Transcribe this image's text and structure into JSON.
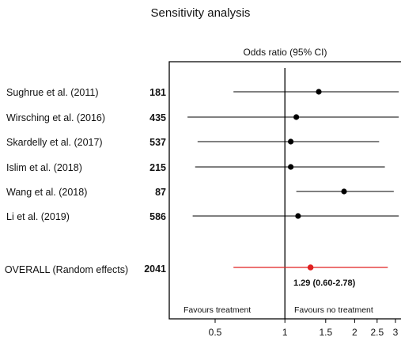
{
  "chart_data": {
    "type": "forest",
    "title": "Sensitivity analysis",
    "subtitle": "Odds ratio (95% CI)",
    "x_scale": "log",
    "xlim": [
      0.35,
      3.1
    ],
    "x_ticks": [
      {
        "value": 0.5,
        "label": "0.5"
      },
      {
        "value": 1,
        "label": "1"
      },
      {
        "value": 1.5,
        "label": "1.5"
      },
      {
        "value": 2,
        "label": "2"
      },
      {
        "value": 2.5,
        "label": "2.5"
      },
      {
        "value": 3,
        "label": "3"
      }
    ],
    "reference_line": 1,
    "studies": [
      {
        "label": "Sughrue et al. (2011)",
        "n": "181",
        "or": 1.4,
        "lo": 0.6,
        "hi": 3.1
      },
      {
        "label": "Wirsching et al. (2016)",
        "n": "435",
        "or": 1.12,
        "lo": 0.38,
        "hi": 3.1
      },
      {
        "label": "Skardelly et al. (2017)",
        "n": "537",
        "or": 1.06,
        "lo": 0.42,
        "hi": 2.55
      },
      {
        "label": "Islim et al. (2018)",
        "n": "215",
        "or": 1.06,
        "lo": 0.41,
        "hi": 2.7
      },
      {
        "label": "Wang et al. (2018)",
        "n": "87",
        "or": 1.8,
        "lo": 1.12,
        "hi": 2.95
      },
      {
        "label": "Li et al. (2019)",
        "n": "586",
        "or": 1.14,
        "lo": 0.4,
        "hi": 3.1
      }
    ],
    "overall": {
      "label": "OVERALL (Random effects)",
      "n": "2041",
      "or": 1.29,
      "lo": 0.6,
      "hi": 2.78,
      "estimate_text": "1.29  (0.60-2.78)"
    },
    "favours_left": "Favours treatment",
    "favours_right": "Favours no treatment",
    "colors": {
      "study": "#000000",
      "overall": "#e02020"
    }
  }
}
